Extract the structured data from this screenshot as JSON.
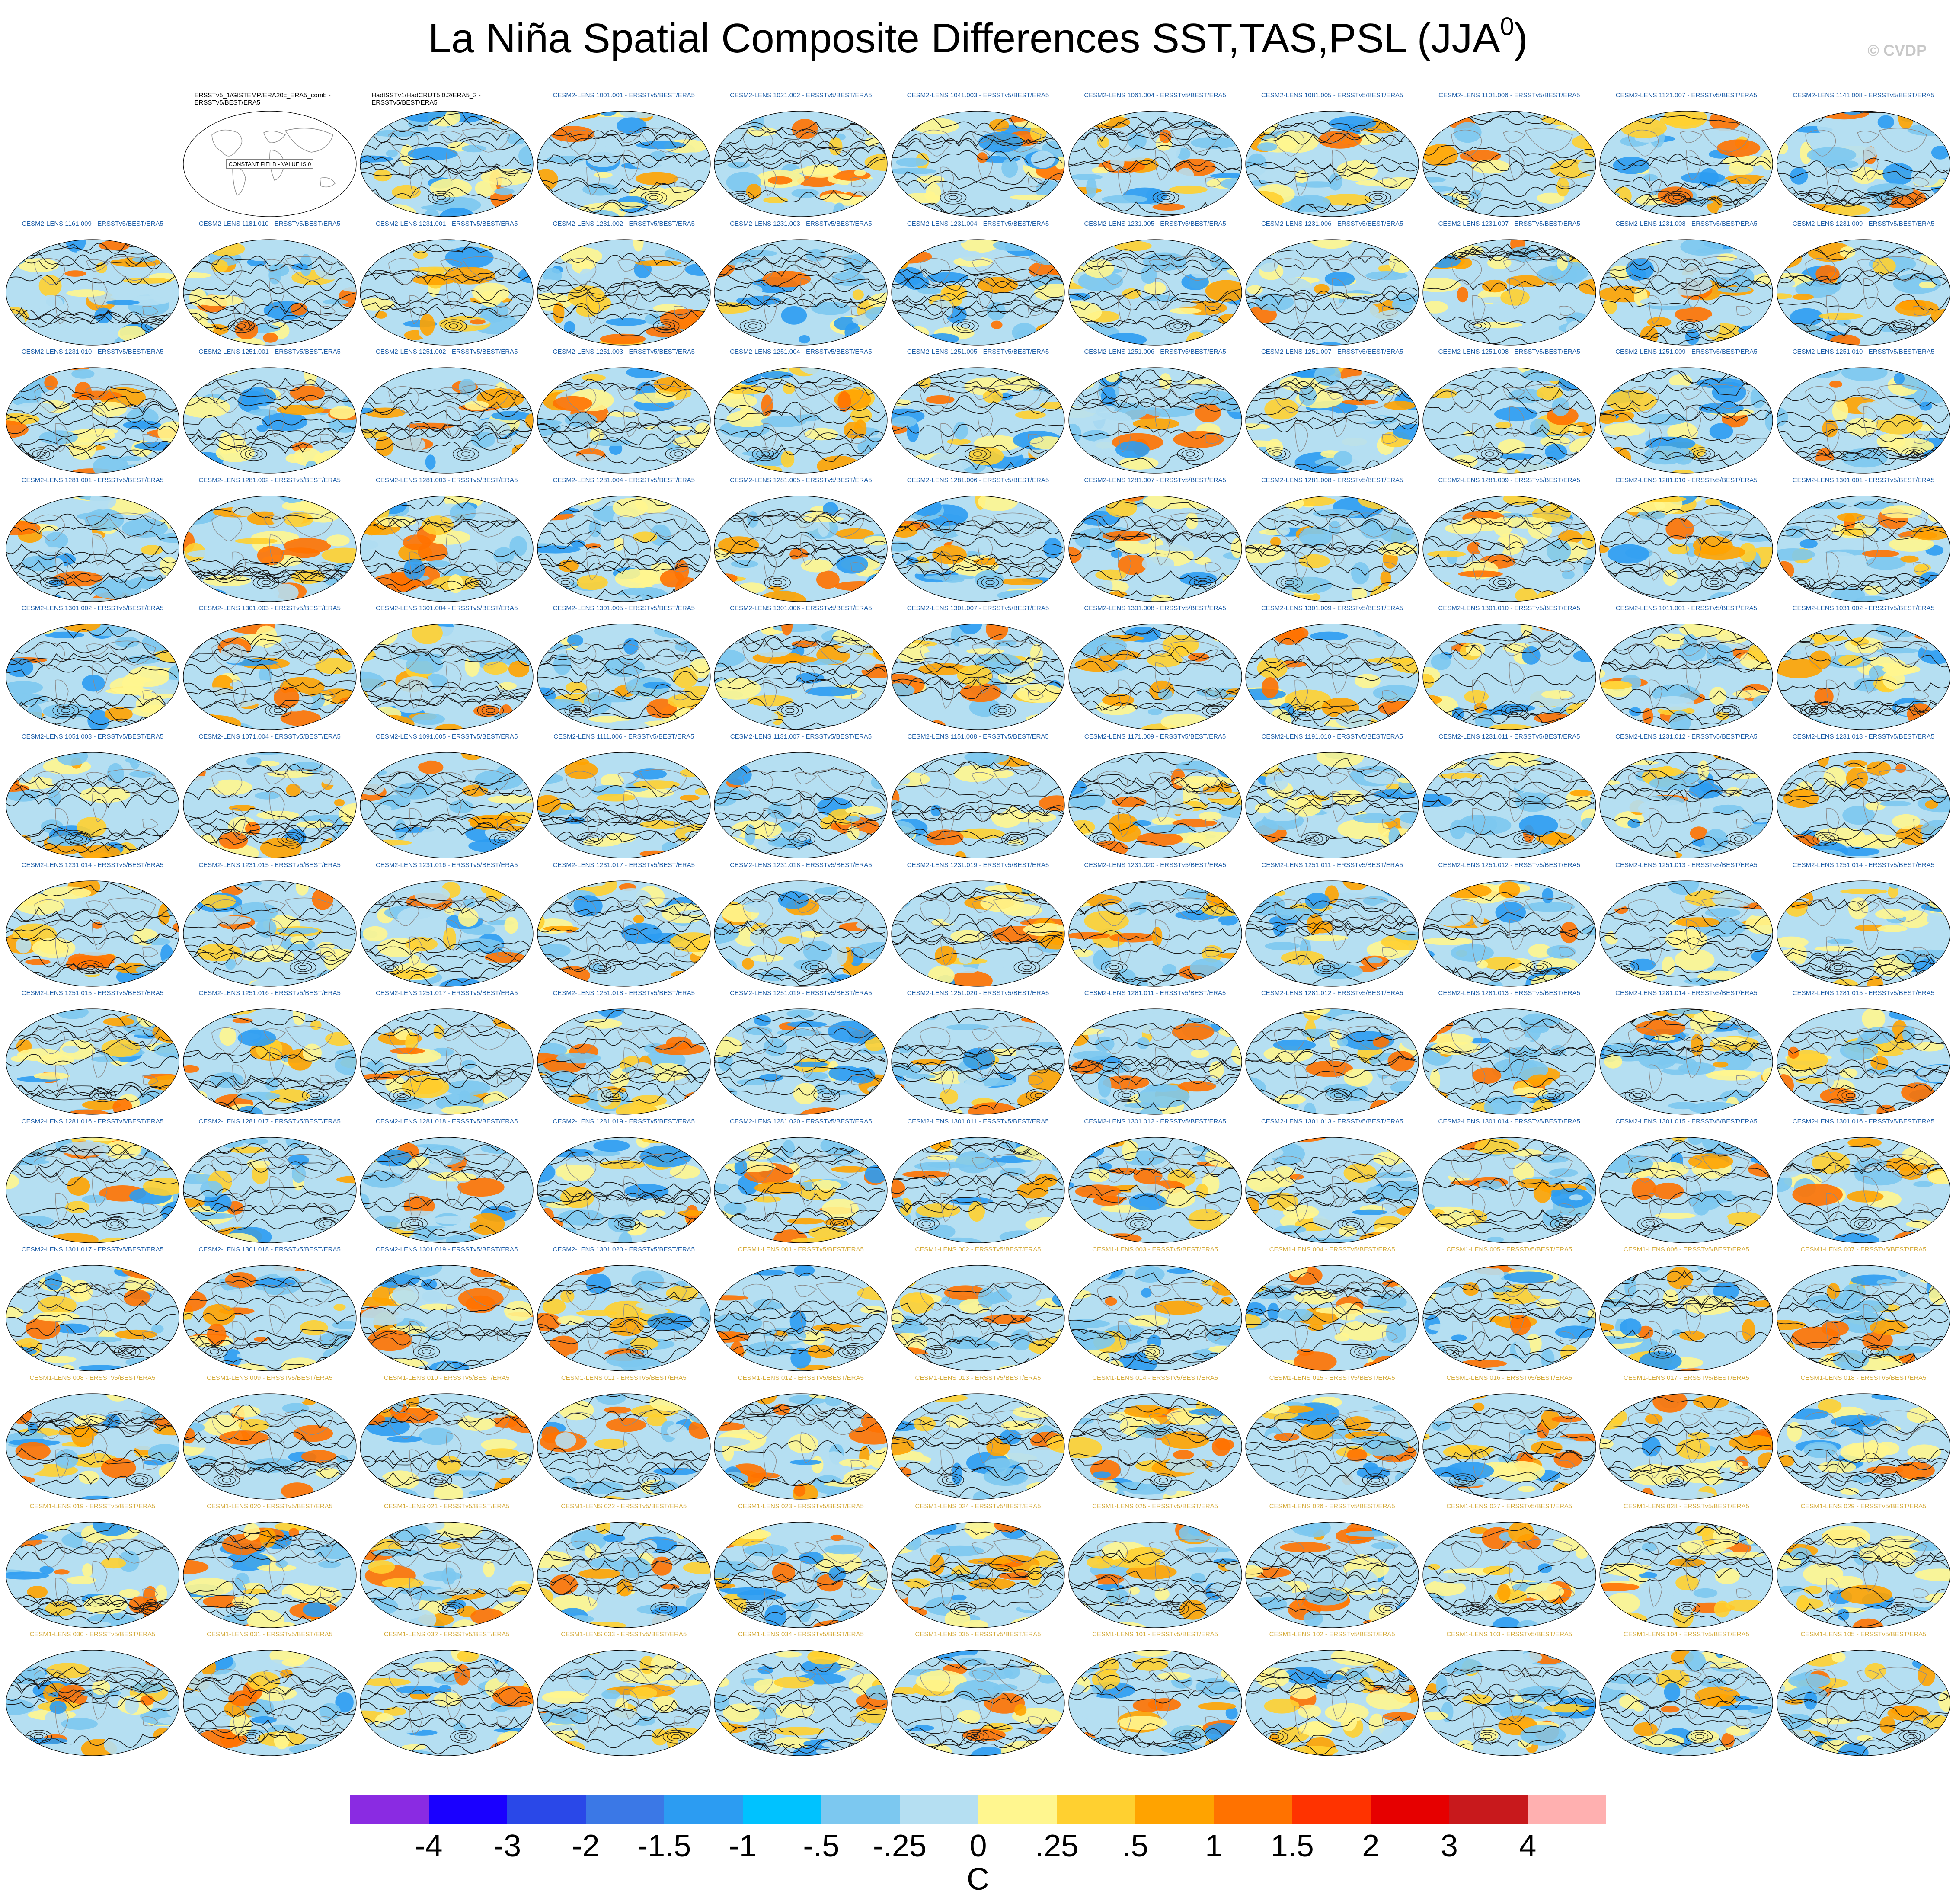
{
  "title": {
    "main": "La Niña Spatial Composite Differences SST,TAS,PSL (JJA",
    "superscript": "0",
    "close": ")"
  },
  "watermark": "© CVDP",
  "panels": [
    {
      "label": "",
      "kind": "blank"
    },
    {
      "label": "ERSSTv5_1/GISTEMP/ERA20c_ERA5_comb - ERSSTv5/BEST/ERA5",
      "kind": "obs",
      "note": "CONSTANT FIELD - VALUE IS 0"
    },
    {
      "label": "HadISSTv1/HadCRUT5.0.2/ERA5_2 - ERSSTv5/BEST/ERA5",
      "kind": "obs"
    },
    {
      "label": "CESM2-LENS 1001.001 - ERSSTv5/BEST/ERA5",
      "kind": "cesm2"
    },
    {
      "label": "CESM2-LENS 1021.002 - ERSSTv5/BEST/ERA5",
      "kind": "cesm2"
    },
    {
      "label": "CESM2-LENS 1041.003 - ERSSTv5/BEST/ERA5",
      "kind": "cesm2"
    },
    {
      "label": "CESM2-LENS 1061.004 - ERSSTv5/BEST/ERA5",
      "kind": "cesm2"
    },
    {
      "label": "CESM2-LENS 1081.005 - ERSSTv5/BEST/ERA5",
      "kind": "cesm2"
    },
    {
      "label": "CESM2-LENS 1101.006 - ERSSTv5/BEST/ERA5",
      "kind": "cesm2"
    },
    {
      "label": "CESM2-LENS 1121.007 - ERSSTv5/BEST/ERA5",
      "kind": "cesm2"
    },
    {
      "label": "CESM2-LENS 1141.008 - ERSSTv5/BEST/ERA5",
      "kind": "cesm2"
    },
    {
      "label": "CESM2-LENS 1161.009 - ERSSTv5/BEST/ERA5",
      "kind": "cesm2"
    },
    {
      "label": "CESM2-LENS 1181.010 - ERSSTv5/BEST/ERA5",
      "kind": "cesm2"
    },
    {
      "label": "CESM2-LENS 1231.001 - ERSSTv5/BEST/ERA5",
      "kind": "cesm2"
    },
    {
      "label": "CESM2-LENS 1231.002 - ERSSTv5/BEST/ERA5",
      "kind": "cesm2"
    },
    {
      "label": "CESM2-LENS 1231.003 - ERSSTv5/BEST/ERA5",
      "kind": "cesm2"
    },
    {
      "label": "CESM2-LENS 1231.004 - ERSSTv5/BEST/ERA5",
      "kind": "cesm2"
    },
    {
      "label": "CESM2-LENS 1231.005 - ERSSTv5/BEST/ERA5",
      "kind": "cesm2"
    },
    {
      "label": "CESM2-LENS 1231.006 - ERSSTv5/BEST/ERA5",
      "kind": "cesm2"
    },
    {
      "label": "CESM2-LENS 1231.007 - ERSSTv5/BEST/ERA5",
      "kind": "cesm2"
    },
    {
      "label": "CESM2-LENS 1231.008 - ERSSTv5/BEST/ERA5",
      "kind": "cesm2"
    },
    {
      "label": "CESM2-LENS 1231.009 - ERSSTv5/BEST/ERA5",
      "kind": "cesm2"
    },
    {
      "label": "CESM2-LENS 1231.010 - ERSSTv5/BEST/ERA5",
      "kind": "cesm2"
    },
    {
      "label": "CESM2-LENS 1251.001 - ERSSTv5/BEST/ERA5",
      "kind": "cesm2"
    },
    {
      "label": "CESM2-LENS 1251.002 - ERSSTv5/BEST/ERA5",
      "kind": "cesm2"
    },
    {
      "label": "CESM2-LENS 1251.003 - ERSSTv5/BEST/ERA5",
      "kind": "cesm2"
    },
    {
      "label": "CESM2-LENS 1251.004 - ERSSTv5/BEST/ERA5",
      "kind": "cesm2"
    },
    {
      "label": "CESM2-LENS 1251.005 - ERSSTv5/BEST/ERA5",
      "kind": "cesm2"
    },
    {
      "label": "CESM2-LENS 1251.006 - ERSSTv5/BEST/ERA5",
      "kind": "cesm2"
    },
    {
      "label": "CESM2-LENS 1251.007 - ERSSTv5/BEST/ERA5",
      "kind": "cesm2"
    },
    {
      "label": "CESM2-LENS 1251.008 - ERSSTv5/BEST/ERA5",
      "kind": "cesm2"
    },
    {
      "label": "CESM2-LENS 1251.009 - ERSSTv5/BEST/ERA5",
      "kind": "cesm2"
    },
    {
      "label": "CESM2-LENS 1251.010 - ERSSTv5/BEST/ERA5",
      "kind": "cesm2"
    },
    {
      "label": "CESM2-LENS 1281.001 - ERSSTv5/BEST/ERA5",
      "kind": "cesm2"
    },
    {
      "label": "CESM2-LENS 1281.002 - ERSSTv5/BEST/ERA5",
      "kind": "cesm2"
    },
    {
      "label": "CESM2-LENS 1281.003 - ERSSTv5/BEST/ERA5",
      "kind": "cesm2"
    },
    {
      "label": "CESM2-LENS 1281.004 - ERSSTv5/BEST/ERA5",
      "kind": "cesm2"
    },
    {
      "label": "CESM2-LENS 1281.005 - ERSSTv5/BEST/ERA5",
      "kind": "cesm2"
    },
    {
      "label": "CESM2-LENS 1281.006 - ERSSTv5/BEST/ERA5",
      "kind": "cesm2"
    },
    {
      "label": "CESM2-LENS 1281.007 - ERSSTv5/BEST/ERA5",
      "kind": "cesm2"
    },
    {
      "label": "CESM2-LENS 1281.008 - ERSSTv5/BEST/ERA5",
      "kind": "cesm2"
    },
    {
      "label": "CESM2-LENS 1281.009 - ERSSTv5/BEST/ERA5",
      "kind": "cesm2"
    },
    {
      "label": "CESM2-LENS 1281.010 - ERSSTv5/BEST/ERA5",
      "kind": "cesm2"
    },
    {
      "label": "CESM2-LENS 1301.001 - ERSSTv5/BEST/ERA5",
      "kind": "cesm2"
    },
    {
      "label": "CESM2-LENS 1301.002 - ERSSTv5/BEST/ERA5",
      "kind": "cesm2"
    },
    {
      "label": "CESM2-LENS 1301.003 - ERSSTv5/BEST/ERA5",
      "kind": "cesm2"
    },
    {
      "label": "CESM2-LENS 1301.004 - ERSSTv5/BEST/ERA5",
      "kind": "cesm2"
    },
    {
      "label": "CESM2-LENS 1301.005 - ERSSTv5/BEST/ERA5",
      "kind": "cesm2"
    },
    {
      "label": "CESM2-LENS 1301.006 - ERSSTv5/BEST/ERA5",
      "kind": "cesm2"
    },
    {
      "label": "CESM2-LENS 1301.007 - ERSSTv5/BEST/ERA5",
      "kind": "cesm2"
    },
    {
      "label": "CESM2-LENS 1301.008 - ERSSTv5/BEST/ERA5",
      "kind": "cesm2"
    },
    {
      "label": "CESM2-LENS 1301.009 - ERSSTv5/BEST/ERA5",
      "kind": "cesm2"
    },
    {
      "label": "CESM2-LENS 1301.010 - ERSSTv5/BEST/ERA5",
      "kind": "cesm2"
    },
    {
      "label": "CESM2-LENS 1011.001 - ERSSTv5/BEST/ERA5",
      "kind": "cesm2"
    },
    {
      "label": "CESM2-LENS 1031.002 - ERSSTv5/BEST/ERA5",
      "kind": "cesm2"
    },
    {
      "label": "CESM2-LENS 1051.003 - ERSSTv5/BEST/ERA5",
      "kind": "cesm2"
    },
    {
      "label": "CESM2-LENS 1071.004 - ERSSTv5/BEST/ERA5",
      "kind": "cesm2"
    },
    {
      "label": "CESM2-LENS 1091.005 - ERSSTv5/BEST/ERA5",
      "kind": "cesm2"
    },
    {
      "label": "CESM2-LENS 1111.006 - ERSSTv5/BEST/ERA5",
      "kind": "cesm2"
    },
    {
      "label": "CESM2-LENS 1131.007 - ERSSTv5/BEST/ERA5",
      "kind": "cesm2"
    },
    {
      "label": "CESM2-LENS 1151.008 - ERSSTv5/BEST/ERA5",
      "kind": "cesm2"
    },
    {
      "label": "CESM2-LENS 1171.009 - ERSSTv5/BEST/ERA5",
      "kind": "cesm2"
    },
    {
      "label": "CESM2-LENS 1191.010 - ERSSTv5/BEST/ERA5",
      "kind": "cesm2"
    },
    {
      "label": "CESM2-LENS 1231.011 - ERSSTv5/BEST/ERA5",
      "kind": "cesm2"
    },
    {
      "label": "CESM2-LENS 1231.012 - ERSSTv5/BEST/ERA5",
      "kind": "cesm2"
    },
    {
      "label": "CESM2-LENS 1231.013 - ERSSTv5/BEST/ERA5",
      "kind": "cesm2"
    },
    {
      "label": "CESM2-LENS 1231.014 - ERSSTv5/BEST/ERA5",
      "kind": "cesm2"
    },
    {
      "label": "CESM2-LENS 1231.015 - ERSSTv5/BEST/ERA5",
      "kind": "cesm2"
    },
    {
      "label": "CESM2-LENS 1231.016 - ERSSTv5/BEST/ERA5",
      "kind": "cesm2"
    },
    {
      "label": "CESM2-LENS 1231.017 - ERSSTv5/BEST/ERA5",
      "kind": "cesm2"
    },
    {
      "label": "CESM2-LENS 1231.018 - ERSSTv5/BEST/ERA5",
      "kind": "cesm2"
    },
    {
      "label": "CESM2-LENS 1231.019 - ERSSTv5/BEST/ERA5",
      "kind": "cesm2"
    },
    {
      "label": "CESM2-LENS 1231.020 - ERSSTv5/BEST/ERA5",
      "kind": "cesm2"
    },
    {
      "label": "CESM2-LENS 1251.011 - ERSSTv5/BEST/ERA5",
      "kind": "cesm2"
    },
    {
      "label": "CESM2-LENS 1251.012 - ERSSTv5/BEST/ERA5",
      "kind": "cesm2"
    },
    {
      "label": "CESM2-LENS 1251.013 - ERSSTv5/BEST/ERA5",
      "kind": "cesm2"
    },
    {
      "label": "CESM2-LENS 1251.014 - ERSSTv5/BEST/ERA5",
      "kind": "cesm2"
    },
    {
      "label": "CESM2-LENS 1251.015 - ERSSTv5/BEST/ERA5",
      "kind": "cesm2"
    },
    {
      "label": "CESM2-LENS 1251.016 - ERSSTv5/BEST/ERA5",
      "kind": "cesm2"
    },
    {
      "label": "CESM2-LENS 1251.017 - ERSSTv5/BEST/ERA5",
      "kind": "cesm2"
    },
    {
      "label": "CESM2-LENS 1251.018 - ERSSTv5/BEST/ERA5",
      "kind": "cesm2"
    },
    {
      "label": "CESM2-LENS 1251.019 - ERSSTv5/BEST/ERA5",
      "kind": "cesm2"
    },
    {
      "label": "CESM2-LENS 1251.020 - ERSSTv5/BEST/ERA5",
      "kind": "cesm2"
    },
    {
      "label": "CESM2-LENS 1281.011 - ERSSTv5/BEST/ERA5",
      "kind": "cesm2"
    },
    {
      "label": "CESM2-LENS 1281.012 - ERSSTv5/BEST/ERA5",
      "kind": "cesm2"
    },
    {
      "label": "CESM2-LENS 1281.013 - ERSSTv5/BEST/ERA5",
      "kind": "cesm2"
    },
    {
      "label": "CESM2-LENS 1281.014 - ERSSTv5/BEST/ERA5",
      "kind": "cesm2"
    },
    {
      "label": "CESM2-LENS 1281.015 - ERSSTv5/BEST/ERA5",
      "kind": "cesm2"
    },
    {
      "label": "CESM2-LENS 1281.016 - ERSSTv5/BEST/ERA5",
      "kind": "cesm2"
    },
    {
      "label": "CESM2-LENS 1281.017 - ERSSTv5/BEST/ERA5",
      "kind": "cesm2"
    },
    {
      "label": "CESM2-LENS 1281.018 - ERSSTv5/BEST/ERA5",
      "kind": "cesm2"
    },
    {
      "label": "CESM2-LENS 1281.019 - ERSSTv5/BEST/ERA5",
      "kind": "cesm2"
    },
    {
      "label": "CESM2-LENS 1281.020 - ERSSTv5/BEST/ERA5",
      "kind": "cesm2"
    },
    {
      "label": "CESM2-LENS 1301.011 - ERSSTv5/BEST/ERA5",
      "kind": "cesm2"
    },
    {
      "label": "CESM2-LENS 1301.012 - ERSSTv5/BEST/ERA5",
      "kind": "cesm2"
    },
    {
      "label": "CESM2-LENS 1301.013 - ERSSTv5/BEST/ERA5",
      "kind": "cesm2"
    },
    {
      "label": "CESM2-LENS 1301.014 - ERSSTv5/BEST/ERA5",
      "kind": "cesm2"
    },
    {
      "label": "CESM2-LENS 1301.015 - ERSSTv5/BEST/ERA5",
      "kind": "cesm2"
    },
    {
      "label": "CESM2-LENS 1301.016 - ERSSTv5/BEST/ERA5",
      "kind": "cesm2"
    },
    {
      "label": "CESM2-LENS 1301.017 - ERSSTv5/BEST/ERA5",
      "kind": "cesm2"
    },
    {
      "label": "CESM2-LENS 1301.018 - ERSSTv5/BEST/ERA5",
      "kind": "cesm2"
    },
    {
      "label": "CESM2-LENS 1301.019 - ERSSTv5/BEST/ERA5",
      "kind": "cesm2"
    },
    {
      "label": "CESM2-LENS 1301.020 - ERSSTv5/BEST/ERA5",
      "kind": "cesm2"
    },
    {
      "label": "CESM1-LENS 001 - ERSSTv5/BEST/ERA5",
      "kind": "cesm1"
    },
    {
      "label": "CESM1-LENS 002 - ERSSTv5/BEST/ERA5",
      "kind": "cesm1"
    },
    {
      "label": "CESM1-LENS 003 - ERSSTv5/BEST/ERA5",
      "kind": "cesm1"
    },
    {
      "label": "CESM1-LENS 004 - ERSSTv5/BEST/ERA5",
      "kind": "cesm1"
    },
    {
      "label": "CESM1-LENS 005 - ERSSTv5/BEST/ERA5",
      "kind": "cesm1"
    },
    {
      "label": "CESM1-LENS 006 - ERSSTv5/BEST/ERA5",
      "kind": "cesm1"
    },
    {
      "label": "CESM1-LENS 007 - ERSSTv5/BEST/ERA5",
      "kind": "cesm1"
    },
    {
      "label": "CESM1-LENS 008 - ERSSTv5/BEST/ERA5",
      "kind": "cesm1"
    },
    {
      "label": "CESM1-LENS 009 - ERSSTv5/BEST/ERA5",
      "kind": "cesm1"
    },
    {
      "label": "CESM1-LENS 010 - ERSSTv5/BEST/ERA5",
      "kind": "cesm1"
    },
    {
      "label": "CESM1-LENS 011 - ERSSTv5/BEST/ERA5",
      "kind": "cesm1"
    },
    {
      "label": "CESM1-LENS 012 - ERSSTv5/BEST/ERA5",
      "kind": "cesm1"
    },
    {
      "label": "CESM1-LENS 013 - ERSSTv5/BEST/ERA5",
      "kind": "cesm1"
    },
    {
      "label": "CESM1-LENS 014 - ERSSTv5/BEST/ERA5",
      "kind": "cesm1"
    },
    {
      "label": "CESM1-LENS 015 - ERSSTv5/BEST/ERA5",
      "kind": "cesm1"
    },
    {
      "label": "CESM1-LENS 016 - ERSSTv5/BEST/ERA5",
      "kind": "cesm1"
    },
    {
      "label": "CESM1-LENS 017 - ERSSTv5/BEST/ERA5",
      "kind": "cesm1"
    },
    {
      "label": "CESM1-LENS 018 - ERSSTv5/BEST/ERA5",
      "kind": "cesm1"
    },
    {
      "label": "CESM1-LENS 019 - ERSSTv5/BEST/ERA5",
      "kind": "cesm1"
    },
    {
      "label": "CESM1-LENS 020 - ERSSTv5/BEST/ERA5",
      "kind": "cesm1"
    },
    {
      "label": "CESM1-LENS 021 - ERSSTv5/BEST/ERA5",
      "kind": "cesm1"
    },
    {
      "label": "CESM1-LENS 022 - ERSSTv5/BEST/ERA5",
      "kind": "cesm1"
    },
    {
      "label": "CESM1-LENS 023 - ERSSTv5/BEST/ERA5",
      "kind": "cesm1"
    },
    {
      "label": "CESM1-LENS 024 - ERSSTv5/BEST/ERA5",
      "kind": "cesm1"
    },
    {
      "label": "CESM1-LENS 025 - ERSSTv5/BEST/ERA5",
      "kind": "cesm1"
    },
    {
      "label": "CESM1-LENS 026 - ERSSTv5/BEST/ERA5",
      "kind": "cesm1"
    },
    {
      "label": "CESM1-LENS 027 - ERSSTv5/BEST/ERA5",
      "kind": "cesm1"
    },
    {
      "label": "CESM1-LENS 028 - ERSSTv5/BEST/ERA5",
      "kind": "cesm1"
    },
    {
      "label": "CESM1-LENS 029 - ERSSTv5/BEST/ERA5",
      "kind": "cesm1"
    },
    {
      "label": "CESM1-LENS 030 - ERSSTv5/BEST/ERA5",
      "kind": "cesm1"
    },
    {
      "label": "CESM1-LENS 031 - ERSSTv5/BEST/ERA5",
      "kind": "cesm1"
    },
    {
      "label": "CESM1-LENS 032 - ERSSTv5/BEST/ERA5",
      "kind": "cesm1"
    },
    {
      "label": "CESM1-LENS 033 - ERSSTv5/BEST/ERA5",
      "kind": "cesm1"
    },
    {
      "label": "CESM1-LENS 034 - ERSSTv5/BEST/ERA5",
      "kind": "cesm1"
    },
    {
      "label": "CESM1-LENS 035 - ERSSTv5/BEST/ERA5",
      "kind": "cesm1"
    },
    {
      "label": "CESM1-LENS 101 - ERSSTv5/BEST/ERA5",
      "kind": "cesm1"
    },
    {
      "label": "CESM1-LENS 102 - ERSSTv5/BEST/ERA5",
      "kind": "cesm1"
    },
    {
      "label": "CESM1-LENS 103 - ERSSTv5/BEST/ERA5",
      "kind": "cesm1"
    },
    {
      "label": "CESM1-LENS 104 - ERSSTv5/BEST/ERA5",
      "kind": "cesm1"
    },
    {
      "label": "CESM1-LENS 105 - ERSSTv5/BEST/ERA5",
      "kind": "cesm1"
    }
  ],
  "colorbar": {
    "colors": [
      "#8a2be2",
      "#1a00ff",
      "#2a48e8",
      "#3b78e6",
      "#2c9cf2",
      "#00c2ff",
      "#7cc8f0",
      "#b5dff2",
      "#fff68f",
      "#ffd030",
      "#ffa300",
      "#ff7200",
      "#ff3300",
      "#e60000",
      "#c8191c",
      "#ffb0b0"
    ],
    "ticks": [
      "-4",
      "-3",
      "-2",
      "-1.5",
      "-1",
      "-.5",
      "-.25",
      "0",
      ".25",
      ".5",
      "1",
      "1.5",
      "2",
      "3",
      "4"
    ],
    "units": "C"
  }
}
